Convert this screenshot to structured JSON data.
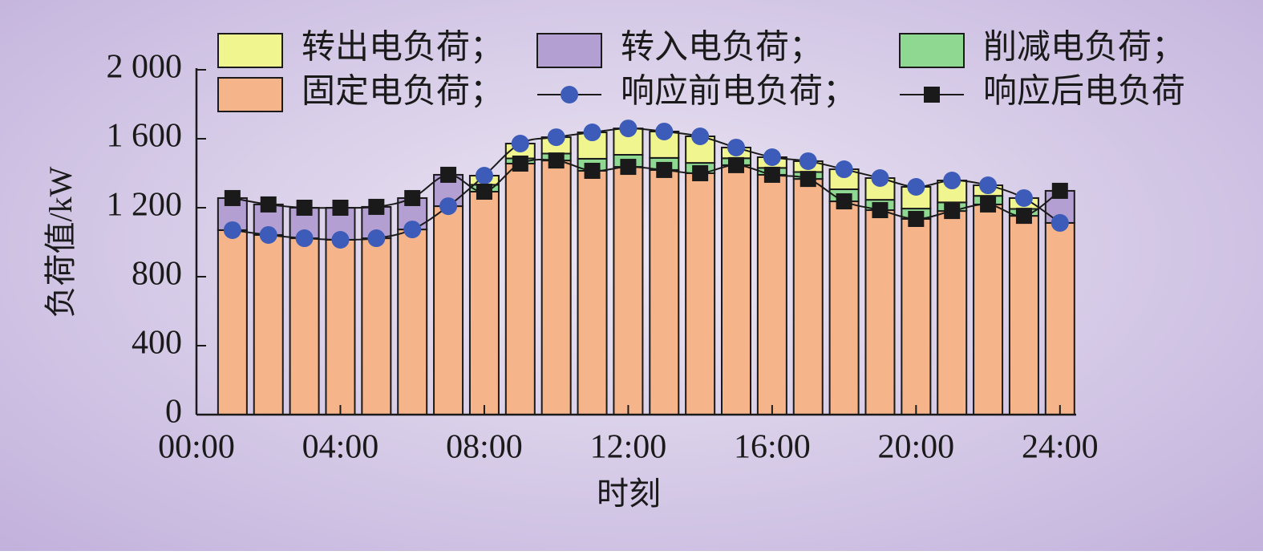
{
  "chart_data": {
    "type": "bar",
    "stacked": true,
    "x_label": "时刻",
    "y_label": "负荷值/kW",
    "x": [
      1,
      2,
      3,
      4,
      5,
      6,
      7,
      8,
      9,
      10,
      11,
      12,
      13,
      14,
      15,
      16,
      17,
      18,
      19,
      20,
      21,
      22,
      23,
      24
    ],
    "xlim": [
      0,
      24.45
    ],
    "xticks": [
      {
        "value": 0,
        "label": "00:00"
      },
      {
        "value": 4,
        "label": "04:00"
      },
      {
        "value": 8,
        "label": "08:00"
      },
      {
        "value": 12,
        "label": "12:00"
      },
      {
        "value": 16,
        "label": "16:00"
      },
      {
        "value": 20,
        "label": "20:00"
      },
      {
        "value": 24,
        "label": "24:00"
      }
    ],
    "ylim": [
      0,
      2000
    ],
    "yticks": [
      0,
      400,
      800,
      {
        "value": 1200,
        "label": "1 200"
      },
      {
        "value": 1600,
        "label": "1 600"
      },
      {
        "value": 2000,
        "label": "2 000"
      }
    ],
    "series": [
      {
        "name": "转出电负荷；",
        "type": "bar",
        "color": "#f0f590",
        "values": [
          0,
          0,
          0,
          0,
          0,
          0,
          0,
          53,
          86,
          95,
          153,
          153,
          153,
          154,
          62,
          62,
          63,
          116,
          126,
          126,
          127,
          61,
          63,
          0
        ]
      },
      {
        "name": "转入电负荷；",
        "type": "bar",
        "color": "#b39fd2",
        "values": [
          186,
          177,
          177,
          186,
          182,
          182,
          182,
          0,
          0,
          0,
          0,
          0,
          0,
          0,
          0,
          0,
          0,
          0,
          0,
          0,
          0,
          0,
          0,
          186
        ]
      },
      {
        "name": "削减电负荷；",
        "type": "bar",
        "color": "#8ed892",
        "values": [
          0,
          0,
          0,
          0,
          0,
          0,
          0,
          40,
          30,
          40,
          70,
          70,
          70,
          60,
          40,
          40,
          40,
          70,
          60,
          60,
          50,
          50,
          40,
          0
        ]
      },
      {
        "name": "固定电负荷；",
        "type": "bar",
        "color": "#f5b48a",
        "values": [
          1070,
          1042,
          1023,
          1014,
          1023,
          1074,
          1209,
          1293,
          1456,
          1474,
          1414,
          1437,
          1419,
          1400,
          1447,
          1391,
          1367,
          1237,
          1186,
          1135,
          1181,
          1219,
          1153,
          1112
        ]
      },
      {
        "name": "响应前电负荷；",
        "type": "line",
        "marker": "circle",
        "color": "#3d5bb8",
        "values": [
          1070,
          1042,
          1023,
          1014,
          1023,
          1074,
          1209,
          1386,
          1572,
          1609,
          1637,
          1660,
          1642,
          1614,
          1549,
          1493,
          1470,
          1423,
          1372,
          1321,
          1358,
          1330,
          1256,
          1112
        ]
      },
      {
        "name": "响应后电负荷",
        "type": "line",
        "marker": "square",
        "color": "#1a1a1a",
        "values": [
          1256,
          1219,
          1200,
          1200,
          1205,
          1256,
          1391,
          1293,
          1456,
          1474,
          1414,
          1437,
          1419,
          1400,
          1447,
          1391,
          1367,
          1237,
          1186,
          1135,
          1181,
          1219,
          1153,
          1298
        ]
      }
    ]
  }
}
